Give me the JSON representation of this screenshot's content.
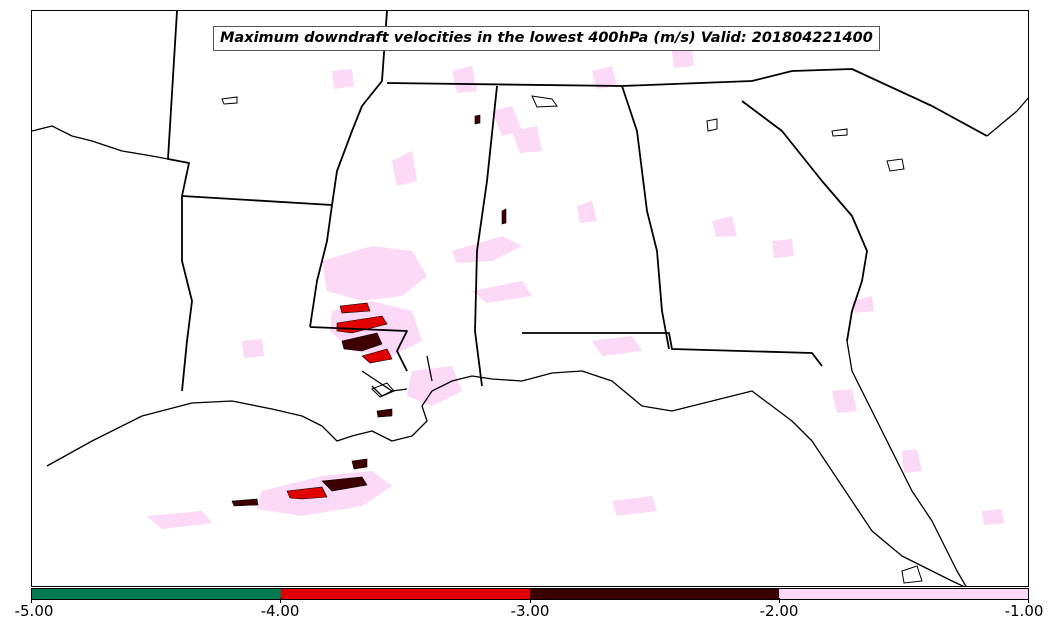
{
  "map": {
    "title": "Maximum downdraft velocities in the lowest 400hPa (m/s) Valid: 201804221400",
    "region_states": [
      "Arkansas",
      "Louisiana",
      "Mississippi",
      "Alabama",
      "Georgia",
      "South Carolina",
      "Florida",
      "Tennessee"
    ],
    "background_color": "#ffffff",
    "boundary_color": "#000000"
  },
  "colorbar": {
    "ticks": [
      "-5.00",
      "-4.00",
      "-3.00",
      "-2.00",
      "-1.00"
    ],
    "segments": [
      {
        "from": -5,
        "to": -4,
        "color": "#007a52"
      },
      {
        "from": -4,
        "to": -3,
        "color": "#e00000"
      },
      {
        "from": -3,
        "to": -2,
        "color": "#3d0000"
      },
      {
        "from": -2,
        "to": -1,
        "color": "#fcd9f7"
      }
    ]
  }
}
